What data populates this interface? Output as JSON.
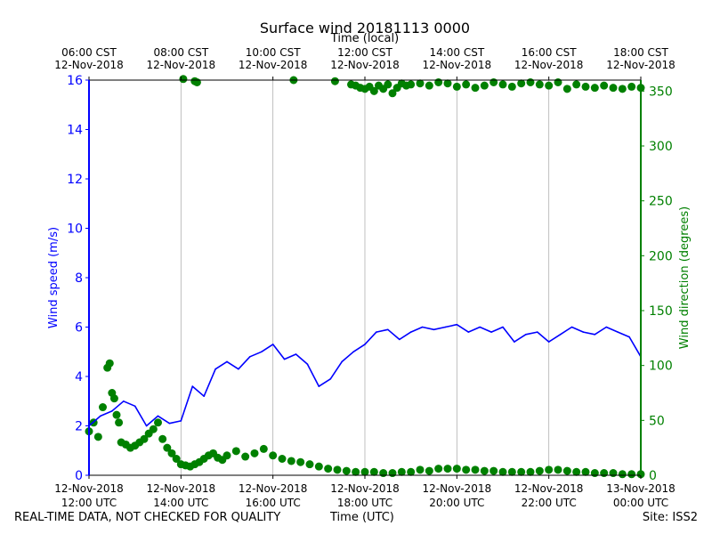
{
  "chart_data": {
    "type": "line",
    "title": "Surface wind 20181113 0000",
    "xlabel": "Time (UTC)",
    "xlabel_top": "Time (local)",
    "ylabel": "Wind speed (m/s)",
    "ylabel_right": "Wind direction (degrees)",
    "x_range_utc_hours": [
      12,
      24
    ],
    "ylim": [
      0,
      16
    ],
    "ylim_right": [
      0,
      360
    ],
    "grid": "vertical",
    "yticks": [
      "0",
      "2",
      "4",
      "6",
      "8",
      "10",
      "12",
      "14",
      "16"
    ],
    "yticks_right": [
      "0",
      "50",
      "100",
      "150",
      "200",
      "250",
      "300",
      "350"
    ],
    "xticks_bottom": [
      {
        "date": "12-Nov-2018",
        "time": "12:00 UTC"
      },
      {
        "date": "12-Nov-2018",
        "time": "14:00 UTC"
      },
      {
        "date": "12-Nov-2018",
        "time": "16:00 UTC"
      },
      {
        "date": "12-Nov-2018",
        "time": "18:00 UTC"
      },
      {
        "date": "12-Nov-2018",
        "time": "20:00 UTC"
      },
      {
        "date": "12-Nov-2018",
        "time": "22:00 UTC"
      },
      {
        "date": "13-Nov-2018",
        "time": "00:00 UTC"
      }
    ],
    "xticks_top": [
      {
        "time": "06:00 CST",
        "date": "12-Nov-2018"
      },
      {
        "time": "08:00 CST",
        "date": "12-Nov-2018"
      },
      {
        "time": "10:00 CST",
        "date": "12-Nov-2018"
      },
      {
        "time": "12:00 CST",
        "date": "12-Nov-2018"
      },
      {
        "time": "14:00 CST",
        "date": "12-Nov-2018"
      },
      {
        "time": "16:00 CST",
        "date": "12-Nov-2018"
      },
      {
        "time": "18:00 CST",
        "date": "12-Nov-2018"
      }
    ],
    "series": [
      {
        "name": "Wind speed",
        "axis": "left",
        "style": "line",
        "color": "#0000ff",
        "x": [
          12.0,
          12.25,
          12.5,
          12.75,
          13.0,
          13.25,
          13.5,
          13.75,
          14.0,
          14.25,
          14.5,
          14.75,
          15.0,
          15.25,
          15.5,
          15.75,
          16.0,
          16.25,
          16.5,
          16.75,
          17.0,
          17.25,
          17.5,
          17.75,
          18.0,
          18.25,
          18.5,
          18.75,
          19.0,
          19.25,
          19.5,
          19.75,
          20.0,
          20.25,
          20.5,
          20.75,
          21.0,
          21.25,
          21.5,
          21.75,
          22.0,
          22.25,
          22.5,
          22.75,
          23.0,
          23.25,
          23.5,
          23.75,
          24.0
        ],
        "values": [
          2.0,
          2.4,
          2.6,
          3.0,
          2.8,
          2.0,
          2.4,
          2.1,
          2.2,
          3.6,
          3.2,
          4.3,
          4.6,
          4.3,
          4.8,
          5.0,
          5.3,
          4.7,
          4.9,
          4.5,
          3.6,
          3.9,
          4.6,
          5.0,
          5.3,
          5.8,
          5.9,
          5.5,
          5.8,
          6.0,
          5.9,
          6.0,
          6.1,
          5.8,
          6.0,
          5.8,
          6.0,
          5.4,
          5.7,
          5.8,
          5.4,
          5.7,
          6.0,
          5.8,
          5.7,
          6.0,
          5.8,
          5.6,
          4.8
        ]
      },
      {
        "name": "Wind direction",
        "axis": "right",
        "style": "scatter",
        "color": "#008000",
        "x": [
          12.0,
          12.1,
          12.2,
          12.3,
          12.4,
          12.45,
          12.5,
          12.55,
          12.6,
          12.65,
          12.7,
          12.8,
          12.9,
          13.0,
          13.1,
          13.2,
          13.3,
          13.4,
          13.5,
          13.6,
          13.7,
          13.8,
          13.9,
          14.0,
          14.1,
          14.2,
          14.3,
          14.4,
          14.5,
          14.6,
          14.7,
          14.8,
          14.9,
          15.0,
          15.2,
          15.4,
          15.6,
          15.8,
          16.0,
          16.2,
          16.4,
          16.6,
          16.8,
          17.0,
          17.2,
          17.4,
          17.6,
          17.8,
          18.0,
          18.2,
          18.4,
          18.6,
          18.8,
          19.0,
          19.2,
          19.4,
          19.6,
          19.8,
          20.0,
          20.2,
          20.4,
          20.6,
          20.8,
          21.0,
          21.2,
          21.4,
          21.6,
          21.8,
          22.0,
          22.2,
          22.4,
          22.6,
          22.8,
          23.0,
          23.2,
          23.4,
          23.6,
          23.8,
          24.0,
          14.05,
          14.3,
          14.35,
          16.45,
          17.35,
          17.7,
          17.8,
          17.9,
          18.0,
          18.1,
          18.2,
          18.3,
          18.4,
          18.5,
          18.6,
          18.7,
          18.8,
          18.9,
          19.0,
          19.2,
          19.4,
          19.6,
          19.8,
          20.0,
          20.2,
          20.4,
          20.6,
          20.8,
          21.0,
          21.2,
          21.4,
          21.6,
          21.8,
          22.0,
          22.2,
          22.4,
          22.6,
          22.8,
          23.0,
          23.2,
          23.4,
          23.6,
          23.8,
          24.0
        ],
        "values": [
          40,
          48,
          35,
          62,
          98,
          102,
          75,
          70,
          55,
          48,
          30,
          28,
          25,
          27,
          30,
          33,
          38,
          42,
          48,
          33,
          25,
          20,
          15,
          10,
          9,
          8,
          10,
          12,
          15,
          18,
          20,
          16,
          14,
          18,
          22,
          17,
          20,
          24,
          18,
          15,
          13,
          12,
          10,
          8,
          6,
          5,
          4,
          3,
          3,
          3,
          2,
          2,
          3,
          3,
          5,
          4,
          6,
          6,
          6,
          5,
          5,
          4,
          4,
          3,
          3,
          3,
          3,
          4,
          5,
          5,
          4,
          3,
          3,
          2,
          2,
          2,
          1,
          1,
          1,
          361,
          359,
          358,
          360,
          359,
          356,
          355,
          353,
          352,
          354,
          350,
          355,
          352,
          356,
          348,
          353,
          357,
          355,
          356,
          357,
          355,
          358,
          357,
          354,
          356,
          353,
          355,
          358,
          356,
          354,
          357,
          358,
          356,
          355,
          358,
          352,
          356,
          354,
          353,
          355,
          353,
          352,
          354,
          353
        ]
      }
    ]
  },
  "footer": {
    "left": "REAL-TIME DATA, NOT CHECKED FOR QUALITY",
    "center": "Time (UTC)",
    "right": "Site: ISS2"
  }
}
